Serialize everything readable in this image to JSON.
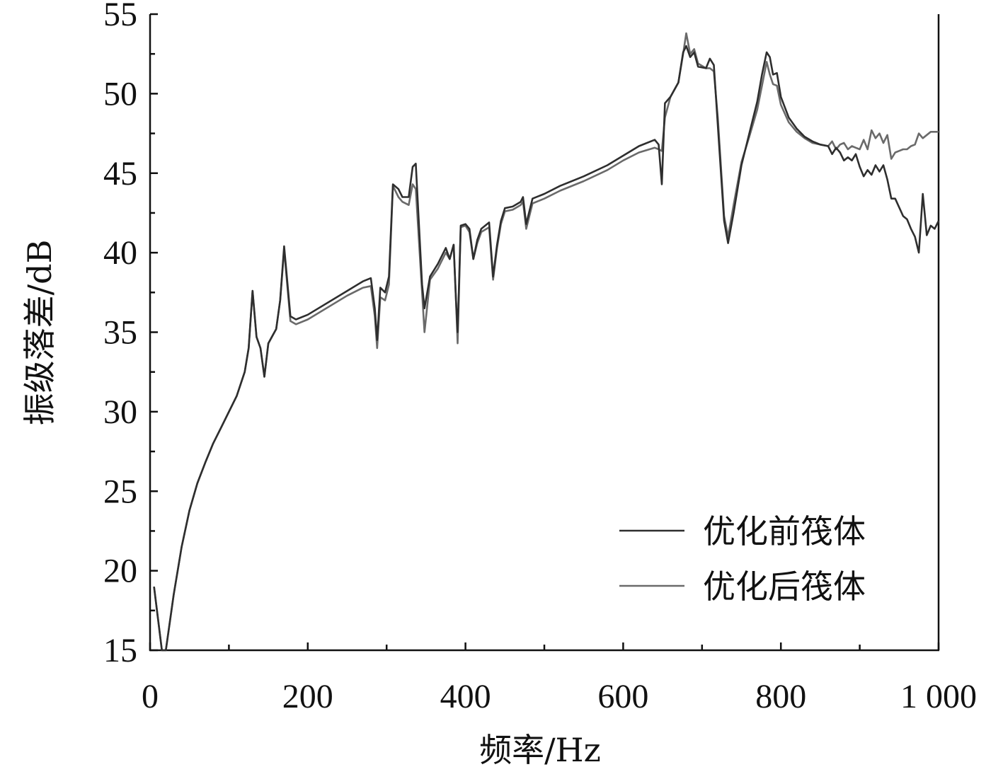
{
  "chart_data": {
    "type": "line",
    "xlabel": "频率/Hz",
    "ylabel": "振级落差/dB",
    "xlim": [
      0,
      1000
    ],
    "ylim": [
      15,
      55
    ],
    "x_ticks": [
      0,
      200,
      400,
      600,
      800,
      1000
    ],
    "x_tick_labels": [
      "0",
      "200",
      "400",
      "600",
      "800",
      "1 000"
    ],
    "y_ticks": [
      15,
      20,
      25,
      30,
      35,
      40,
      45,
      50,
      55
    ],
    "y_tick_labels": [
      "15",
      "20",
      "25",
      "30",
      "35",
      "40",
      "45",
      "50",
      "55"
    ],
    "grid": false,
    "legend_position": "bottom-right",
    "series": [
      {
        "name": "优化前筏体",
        "color": "#2e2e2e",
        "points": [
          [
            5,
            19
          ],
          [
            15,
            15
          ],
          [
            20,
            15
          ],
          [
            30,
            18.5
          ],
          [
            40,
            21.5
          ],
          [
            50,
            23.8
          ],
          [
            60,
            25.5
          ],
          [
            70,
            26.8
          ],
          [
            80,
            28
          ],
          [
            90,
            29
          ],
          [
            100,
            30
          ],
          [
            110,
            31
          ],
          [
            120,
            32.5
          ],
          [
            125,
            34
          ],
          [
            130,
            37.6
          ],
          [
            135,
            34.7
          ],
          [
            140,
            34
          ],
          [
            145,
            32.2
          ],
          [
            150,
            34.3
          ],
          [
            160,
            35.2
          ],
          [
            165,
            37
          ],
          [
            170,
            40.4
          ],
          [
            178,
            36
          ],
          [
            185,
            35.8
          ],
          [
            200,
            36.1
          ],
          [
            250,
            37.6
          ],
          [
            270,
            38.2
          ],
          [
            280,
            38.4
          ],
          [
            285,
            36.5
          ],
          [
            288,
            34.5
          ],
          [
            292,
            37.8
          ],
          [
            298,
            37.5
          ],
          [
            303,
            38.5
          ],
          [
            308,
            44.3
          ],
          [
            315,
            44
          ],
          [
            320,
            43.5
          ],
          [
            328,
            43.5
          ],
          [
            333,
            45.4
          ],
          [
            337,
            45.6
          ],
          [
            345,
            38
          ],
          [
            348,
            36.5
          ],
          [
            355,
            38.5
          ],
          [
            365,
            39.3
          ],
          [
            375,
            40.3
          ],
          [
            380,
            39.6
          ],
          [
            385,
            40.5
          ],
          [
            388,
            37
          ],
          [
            390,
            35
          ],
          [
            394,
            41.7
          ],
          [
            400,
            41.8
          ],
          [
            405,
            41.5
          ],
          [
            410,
            39.6
          ],
          [
            415,
            40.8
          ],
          [
            420,
            41.5
          ],
          [
            430,
            41.9
          ],
          [
            435,
            38.5
          ],
          [
            440,
            40.5
          ],
          [
            445,
            42
          ],
          [
            450,
            42.8
          ],
          [
            460,
            42.9
          ],
          [
            470,
            43.2
          ],
          [
            473,
            43.5
          ],
          [
            477,
            41.8
          ],
          [
            485,
            43.4
          ],
          [
            500,
            43.7
          ],
          [
            520,
            44.2
          ],
          [
            550,
            44.8
          ],
          [
            580,
            45.5
          ],
          [
            600,
            46.1
          ],
          [
            620,
            46.7
          ],
          [
            640,
            47.1
          ],
          [
            645,
            46.8
          ],
          [
            649,
            44.3
          ],
          [
            653,
            49.4
          ],
          [
            660,
            49.8
          ],
          [
            670,
            50.7
          ],
          [
            676,
            52.6
          ],
          [
            680,
            53.0
          ],
          [
            685,
            52.3
          ],
          [
            690,
            52.6
          ],
          [
            695,
            51.7
          ],
          [
            705,
            51.6
          ],
          [
            710,
            52.2
          ],
          [
            715,
            51.8
          ],
          [
            720,
            48
          ],
          [
            728,
            42
          ],
          [
            733,
            40.6
          ],
          [
            740,
            42.5
          ],
          [
            750,
            45.5
          ],
          [
            760,
            47.5
          ],
          [
            770,
            49.5
          ],
          [
            776,
            51.2
          ],
          [
            782,
            52.6
          ],
          [
            786,
            52.3
          ],
          [
            790,
            51.2
          ],
          [
            795,
            51.3
          ],
          [
            800,
            49.8
          ],
          [
            810,
            48.5
          ],
          [
            820,
            47.8
          ],
          [
            830,
            47.3
          ],
          [
            840,
            47
          ],
          [
            850,
            46.8
          ],
          [
            860,
            46.7
          ],
          [
            865,
            46.2
          ],
          [
            870,
            46.6
          ],
          [
            875,
            46.3
          ],
          [
            880,
            45.8
          ],
          [
            885,
            46
          ],
          [
            890,
            45.8
          ],
          [
            895,
            46.2
          ],
          [
            900,
            45.4
          ],
          [
            905,
            44.8
          ],
          [
            910,
            45.2
          ],
          [
            915,
            44.9
          ],
          [
            920,
            45.5
          ],
          [
            925,
            45.1
          ],
          [
            930,
            45.5
          ],
          [
            935,
            44.6
          ],
          [
            940,
            43.4
          ],
          [
            945,
            43.4
          ],
          [
            955,
            42.3
          ],
          [
            960,
            42.1
          ],
          [
            965,
            41.5
          ],
          [
            970,
            41.0
          ],
          [
            975,
            40.0
          ],
          [
            980,
            43.7
          ],
          [
            985,
            41.1
          ],
          [
            990,
            41.7
          ],
          [
            995,
            41.5
          ],
          [
            1000,
            42
          ]
        ]
      },
      {
        "name": "优化后筏体",
        "color": "#6a6a6a",
        "points": [
          [
            5,
            19
          ],
          [
            15,
            15
          ],
          [
            20,
            15
          ],
          [
            30,
            18.5
          ],
          [
            40,
            21.5
          ],
          [
            50,
            23.8
          ],
          [
            60,
            25.5
          ],
          [
            70,
            26.8
          ],
          [
            80,
            28
          ],
          [
            90,
            29
          ],
          [
            100,
            30
          ],
          [
            110,
            31
          ],
          [
            120,
            32.5
          ],
          [
            125,
            34
          ],
          [
            130,
            37.6
          ],
          [
            135,
            34.7
          ],
          [
            140,
            34
          ],
          [
            145,
            32.2
          ],
          [
            150,
            34.3
          ],
          [
            160,
            35.2
          ],
          [
            165,
            37
          ],
          [
            170,
            40.2
          ],
          [
            178,
            35.7
          ],
          [
            185,
            35.5
          ],
          [
            200,
            35.8
          ],
          [
            250,
            37.3
          ],
          [
            270,
            37.8
          ],
          [
            280,
            37.9
          ],
          [
            285,
            36
          ],
          [
            288,
            34
          ],
          [
            292,
            37.2
          ],
          [
            298,
            37
          ],
          [
            303,
            38
          ],
          [
            308,
            44.2
          ],
          [
            315,
            43.5
          ],
          [
            320,
            43.2
          ],
          [
            328,
            43
          ],
          [
            333,
            44.3
          ],
          [
            337,
            44.0
          ],
          [
            345,
            37.5
          ],
          [
            348,
            35
          ],
          [
            355,
            38.3
          ],
          [
            365,
            39
          ],
          [
            375,
            40
          ],
          [
            380,
            39.6
          ],
          [
            385,
            40.5
          ],
          [
            388,
            37
          ],
          [
            390,
            34.3
          ],
          [
            394,
            41.6
          ],
          [
            400,
            41.7
          ],
          [
            405,
            41.3
          ],
          [
            410,
            39.6
          ],
          [
            415,
            40.6
          ],
          [
            420,
            41.3
          ],
          [
            430,
            41.6
          ],
          [
            435,
            38.3
          ],
          [
            440,
            40.3
          ],
          [
            445,
            41.8
          ],
          [
            450,
            42.6
          ],
          [
            460,
            42.7
          ],
          [
            470,
            43
          ],
          [
            473,
            43.2
          ],
          [
            477,
            41.5
          ],
          [
            485,
            43.1
          ],
          [
            500,
            43.4
          ],
          [
            520,
            43.9
          ],
          [
            550,
            44.5
          ],
          [
            580,
            45.2
          ],
          [
            600,
            45.8
          ],
          [
            620,
            46.3
          ],
          [
            640,
            46.6
          ],
          [
            645,
            46.5
          ],
          [
            649,
            46.4
          ],
          [
            653,
            48.5
          ],
          [
            660,
            49.8
          ],
          [
            670,
            50.7
          ],
          [
            676,
            52.5
          ],
          [
            680,
            53.8
          ],
          [
            685,
            52.5
          ],
          [
            690,
            52.8
          ],
          [
            695,
            51.9
          ],
          [
            705,
            51.6
          ],
          [
            710,
            51.6
          ],
          [
            715,
            51.4
          ],
          [
            720,
            48.5
          ],
          [
            728,
            42.3
          ],
          [
            733,
            41
          ],
          [
            740,
            43
          ],
          [
            750,
            45.7
          ],
          [
            760,
            47.3
          ],
          [
            770,
            49
          ],
          [
            776,
            50.5
          ],
          [
            782,
            52.0
          ],
          [
            786,
            51.2
          ],
          [
            790,
            50.6
          ],
          [
            795,
            50.5
          ],
          [
            800,
            49.3
          ],
          [
            810,
            48.2
          ],
          [
            820,
            47.6
          ],
          [
            830,
            47.2
          ],
          [
            840,
            46.9
          ],
          [
            850,
            46.8
          ],
          [
            860,
            46.7
          ],
          [
            865,
            47.0
          ],
          [
            870,
            46.5
          ],
          [
            875,
            46.8
          ],
          [
            880,
            46.9
          ],
          [
            885,
            46.5
          ],
          [
            890,
            46.7
          ],
          [
            895,
            46.6
          ],
          [
            900,
            46.5
          ],
          [
            905,
            47.1
          ],
          [
            910,
            46.5
          ],
          [
            915,
            47.7
          ],
          [
            920,
            47.2
          ],
          [
            925,
            47.5
          ],
          [
            930,
            46.9
          ],
          [
            935,
            47.4
          ],
          [
            940,
            45.9
          ],
          [
            945,
            46.3
          ],
          [
            955,
            46.5
          ],
          [
            960,
            46.5
          ],
          [
            965,
            46.7
          ],
          [
            970,
            46.8
          ],
          [
            975,
            47.5
          ],
          [
            980,
            47.2
          ],
          [
            985,
            47.4
          ],
          [
            990,
            47.6
          ],
          [
            995,
            47.6
          ],
          [
            1000,
            47.6
          ]
        ]
      }
    ]
  }
}
